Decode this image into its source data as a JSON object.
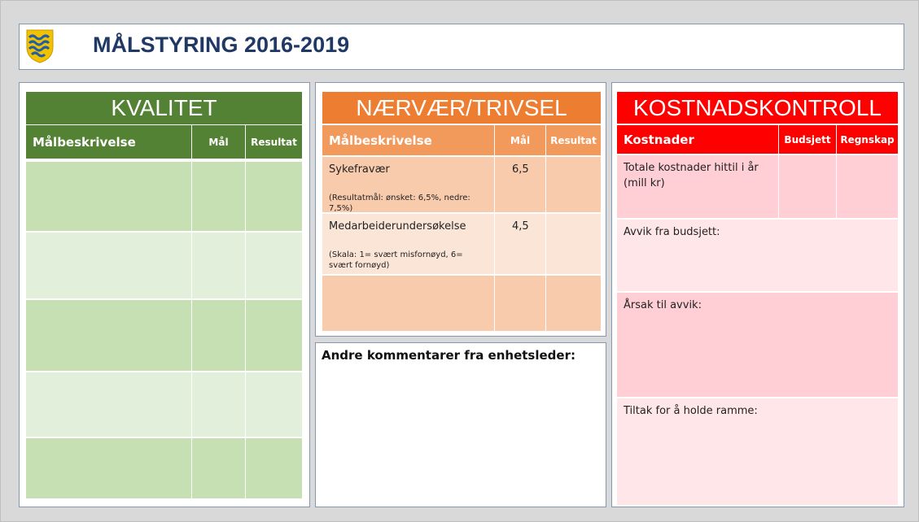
{
  "header": {
    "title": "MÅLSTYRING 2016-2019"
  },
  "kvalitet": {
    "title": "KVALITET",
    "columns": [
      "Målbeskrivelse",
      "Mål",
      "Resultat"
    ]
  },
  "naervaer": {
    "title": "NÆRVÆR/TRIVSEL",
    "columns": [
      "Målbeskrivelse",
      "Mål",
      "Resultat"
    ],
    "rows": [
      {
        "label": "Sykefravær",
        "note": "(Resultatmål: ønsket: 6,5%, nedre: 7,5%)",
        "goal": "6,5"
      },
      {
        "label": "Medarbeiderundersøkelse",
        "note": "(Skala: 1= svært misfornøyd, 6= svært fornøyd)",
        "goal": "4,5"
      }
    ]
  },
  "comments": {
    "title": "Andre kommentarer fra enhetsleder:"
  },
  "kostnad": {
    "title": "KOSTNADSKONTROLL",
    "columns": [
      "Kostnader",
      "Budsjett",
      "Regnskap"
    ],
    "rows": [
      "Totale kostnader hittil i år (mill kr)",
      "Avvik fra budsjett:",
      "Årsak til avvik:",
      "Tiltak for å holde ramme:"
    ]
  }
}
